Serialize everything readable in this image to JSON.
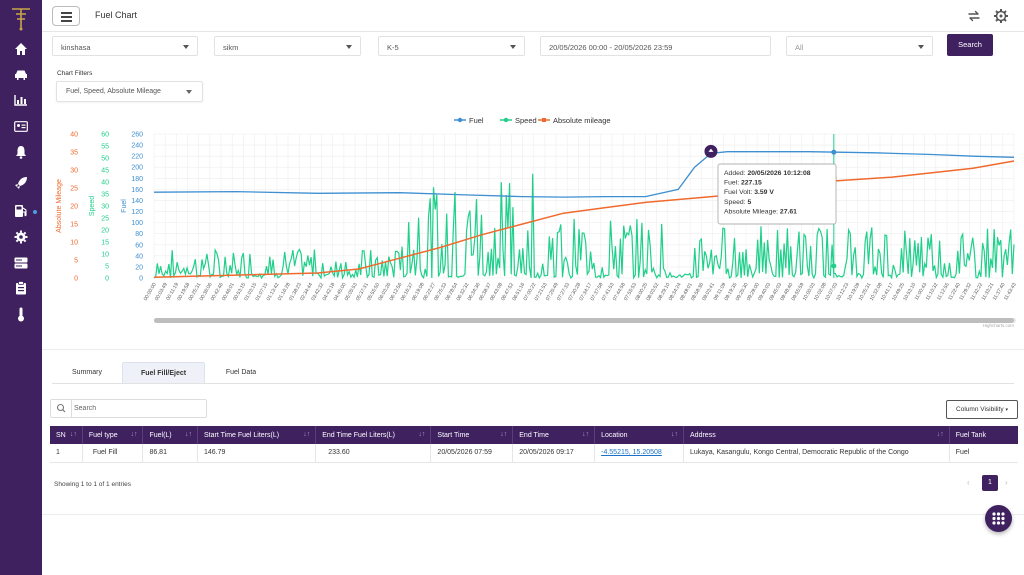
{
  "app": {
    "title": "Fuel Chart"
  },
  "sidebar": {
    "items": [
      {
        "icon": "home-icon"
      },
      {
        "icon": "car-icon"
      },
      {
        "icon": "bar-chart-icon"
      },
      {
        "icon": "id-card-icon"
      },
      {
        "icon": "bell-icon"
      },
      {
        "icon": "rocket-icon"
      },
      {
        "icon": "fuel-pump-icon"
      },
      {
        "icon": "gear-icon"
      },
      {
        "icon": "server-icon"
      },
      {
        "icon": "clipboard-icon"
      },
      {
        "icon": "thermometer-icon"
      }
    ]
  },
  "filters": {
    "city": "kinshasa",
    "branch": "sikm",
    "vehicle": "K-5",
    "date_range": "20/05/2026 00:00 - 20/05/2026 23:59",
    "all": "All",
    "search_label": "Search"
  },
  "chart_filters": {
    "label": "Chart Filters",
    "value": "Fuel, Speed, Absolute Mileage"
  },
  "chart_data": {
    "type": "line",
    "legend": [
      "Fuel",
      "Speed",
      "Absolute mileage"
    ],
    "legend_position": "top-center",
    "colors": {
      "fuel": "#3d8fd1",
      "speed": "#1fcf8a",
      "mileage": "#f06a2e"
    },
    "axes": {
      "mileage": {
        "label": "Absolute Mileage",
        "ticks": [
          "40",
          "35",
          "30",
          "25",
          "20",
          "15",
          "10",
          "5",
          "0"
        ],
        "range": [
          0,
          40
        ]
      },
      "speed": {
        "label": "Speed",
        "ticks": [
          "60",
          "55",
          "50",
          "45",
          "40",
          "35",
          "30",
          "25",
          "20",
          "15",
          "10",
          "5",
          "0"
        ],
        "range": [
          0,
          60
        ]
      },
      "fuel": {
        "label": "Fuel",
        "ticks": [
          "260",
          "240",
          "220",
          "200",
          "180",
          "160",
          "140",
          "120",
          "100",
          "80",
          "60",
          "40",
          "20",
          "0"
        ],
        "range": [
          0,
          260
        ]
      }
    },
    "x_labels": [
      "00:00:00",
      "00:03:49",
      "00:11:19",
      "00:19:58",
      "00:25:31",
      "00:36:06",
      "00:42:46",
      "00:46:01",
      "00:53:15",
      "01:03:15",
      "01:07:15",
      "01:13:42",
      "01:16:28",
      "01:38:23",
      "02:34:44",
      "03:42:32",
      "04:42:18",
      "04:45:00",
      "05:05:53",
      "05:37:31",
      "05:55:50",
      "06:03:26",
      "06:12:56",
      "06:16:37",
      "06:19:08",
      "06:22:27",
      "06:25:33",
      "06:28:54",
      "06:32:32",
      "06:34:36",
      "06:38:37",
      "06:43:08",
      "06:47:52",
      "06:51:16",
      "07:00:22",
      "07:21:53",
      "07:25:49",
      "07:27:33",
      "07:30:28",
      "07:34:17",
      "07:37:58",
      "07:41:53",
      "07:44:58",
      "07:55:53",
      "08:00:25",
      "08:03:52",
      "08:29:10",
      "08:34:24",
      "08:49:01",
      "08:58:36",
      "09:03:41",
      "09:11:09",
      "09:19:35",
      "09:25:30",
      "09:29:00",
      "09:40:03",
      "09:45:03",
      "09:48:40",
      "09:55:59",
      "10:00:03",
      "10:02:08",
      "10:07:03",
      "10:12:23",
      "10:19:09",
      "10:25:31",
      "10:32:08",
      "10:41:17",
      "10:49:25",
      "10:53:10",
      "11:00:43",
      "11:10:32",
      "11:12:55",
      "11:22:40",
      "11:29:32",
      "11:32:22",
      "11:33:21",
      "11:37:40",
      "11:43:43"
    ],
    "fuel": [
      [
        0,
        155
      ],
      [
        10,
        156
      ],
      [
        20,
        153
      ],
      [
        30,
        154
      ],
      [
        38,
        150
      ],
      [
        45,
        147
      ],
      [
        50,
        146
      ],
      [
        55,
        147
      ],
      [
        60,
        147
      ],
      [
        64,
        160
      ],
      [
        66,
        200
      ],
      [
        68,
        225
      ],
      [
        70,
        228
      ],
      [
        80,
        228
      ],
      [
        88,
        226
      ],
      [
        95,
        223
      ],
      [
        100,
        220
      ],
      [
        105,
        218
      ]
    ],
    "mileage": [
      [
        0,
        0.2
      ],
      [
        10,
        0.8
      ],
      [
        20,
        1.4
      ],
      [
        25,
        2.5
      ],
      [
        30,
        5.5
      ],
      [
        35,
        8.5
      ],
      [
        40,
        12
      ],
      [
        45,
        15
      ],
      [
        50,
        18
      ],
      [
        55,
        19.5
      ],
      [
        60,
        21
      ],
      [
        70,
        23
      ],
      [
        80,
        26.5
      ],
      [
        90,
        28
      ],
      [
        100,
        30.5
      ],
      [
        105,
        32.5
      ]
    ],
    "tooltip": {
      "added_label": "Added:",
      "added": "20/05/2026 10:12:08",
      "fuel_label": "Fuel:",
      "fuel": "227.15",
      "volt_label": "Fuel Volt:",
      "volt": "3.59 V",
      "speed_label": "Speed:",
      "speed": "5",
      "mileage_label": "Absolute Mileage:",
      "mileage": "27.61"
    },
    "credits": "Highcharts.com"
  },
  "tabs": [
    {
      "label": "Summary"
    },
    {
      "label": "Fuel Fill/Eject",
      "active": true
    },
    {
      "label": "Fuel Data"
    }
  ],
  "table": {
    "search_placeholder": "Search",
    "column_visibility": "Column Visibility",
    "headers": [
      "SN",
      "Fuel type",
      "Fuel(L)",
      "Start Time Fuel Liters(L)",
      "End Time Fuel Liters(L)",
      "Start Time",
      "End Time",
      "Location",
      "Address",
      "Fuel Tank"
    ],
    "rows": [
      {
        "sn": "1",
        "fuel_type": "Fuel Fill",
        "fuel_l": "86.81",
        "start_liters": "146.79",
        "end_liters": "233.60",
        "start_time": "20/05/2026 07:59",
        "end_time": "20/05/2026 09:17",
        "location": "-4.55215, 15.20508",
        "address": "Lukaya, Kasangulu, Kongo Central, Democratic Republic of the Congo",
        "tank": "Fuel"
      }
    ],
    "entries_info": "Showing 1 to 1 of 1 entries",
    "page": "1"
  }
}
